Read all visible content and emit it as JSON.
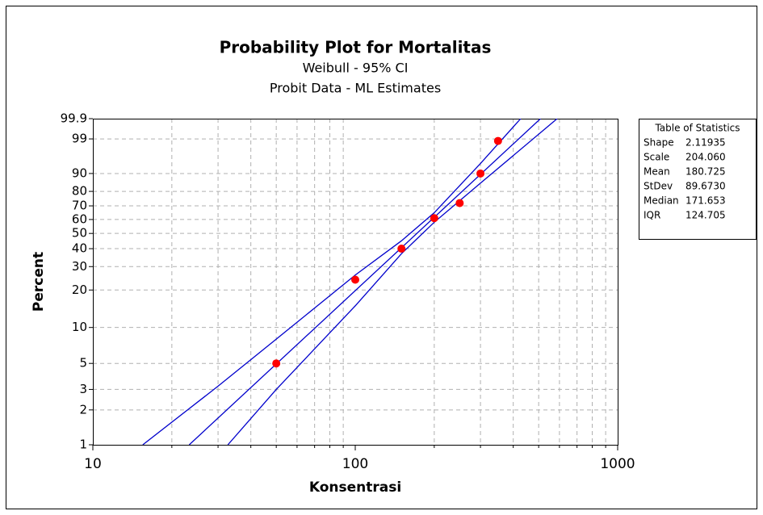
{
  "chart_data": {
    "type": "scatter",
    "title": "Probability Plot for Mortalitas",
    "subtitles": [
      "Weibull - 95% CI",
      "Probit Data - ML Estimates"
    ],
    "xlabel": "Konsentrasi",
    "ylabel": "Percent",
    "xscale": "log",
    "yscale": "weibull",
    "xlim": [
      10,
      1000
    ],
    "ylim": [
      1,
      99.9
    ],
    "xticks": [
      10,
      100,
      1000
    ],
    "xminor": [
      20,
      30,
      40,
      50,
      60,
      70,
      80,
      90,
      200,
      300,
      400,
      500,
      600,
      700,
      800,
      900
    ],
    "yticks": [
      1,
      2,
      3,
      5,
      10,
      20,
      30,
      40,
      50,
      60,
      70,
      80,
      90,
      99,
      99.9
    ],
    "grid": true,
    "points": {
      "color": "#ff0000",
      "x": [
        50,
        100,
        150,
        200,
        250,
        300,
        350
      ],
      "y": [
        5,
        24,
        40,
        61,
        72,
        90,
        98.8
      ]
    },
    "lines": [
      {
        "color": "#0000cc",
        "x": [
          23.3,
          508
        ],
        "y": [
          1,
          99.9
        ]
      },
      {
        "color": "#0000cc",
        "x": [
          15.5,
          30,
          50,
          100,
          150,
          200,
          300,
          427
        ],
        "y": [
          1,
          3.2,
          8,
          26,
          45,
          65,
          94,
          99.9
        ]
      },
      {
        "color": "#0000cc",
        "x": [
          32.7,
          50,
          100,
          150,
          200,
          300,
          588
        ],
        "y": [
          1,
          3,
          15,
          37,
          58,
          85,
          99.9
        ]
      }
    ],
    "stats": {
      "title": "Table of Statistics",
      "rows": [
        [
          "Shape",
          "2.11935"
        ],
        [
          "Scale",
          "204.060"
        ],
        [
          "Mean",
          "180.725"
        ],
        [
          "StDev",
          "89.6730"
        ],
        [
          "Median",
          "171.653"
        ],
        [
          "IQR",
          "124.705"
        ]
      ]
    }
  }
}
